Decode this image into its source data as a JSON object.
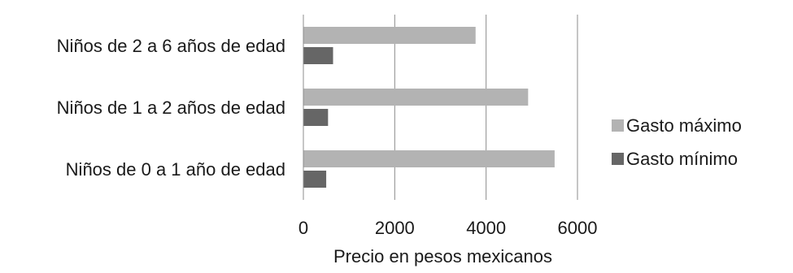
{
  "chart_data": {
    "type": "bar",
    "orientation": "horizontal",
    "categories": [
      "Niños de 0 a 1 año de edad",
      "Niños de 1 a 2 años de edad",
      "Niños de 2 a 6 años de edad"
    ],
    "series": [
      {
        "name": "Gasto mínimo",
        "values": [
          500,
          540,
          650
        ],
        "color": "#666666"
      },
      {
        "name": "Gasto máximo",
        "values": [
          5500,
          4920,
          3770
        ],
        "color": "#b3b3b3"
      }
    ],
    "legend_order": [
      "Gasto máximo",
      "Gasto mínimo"
    ],
    "xlabel": "Precio en pesos mexicanos",
    "xlim": [
      0,
      6000
    ],
    "xticks": [
      0,
      2000,
      4000,
      6000
    ],
    "grid": "vertical",
    "legend_position": "right"
  }
}
